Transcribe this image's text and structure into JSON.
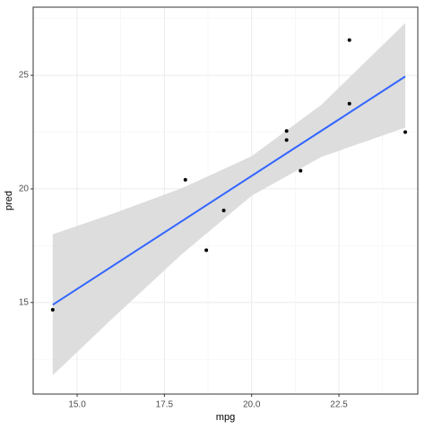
{
  "chart_data": {
    "type": "scatter",
    "x_label": "mpg",
    "y_label": "pred",
    "x": [
      14.3,
      18.1,
      18.7,
      19.2,
      21.0,
      21.0,
      21.4,
      22.8,
      22.8,
      24.4
    ],
    "values": [
      14.68,
      20.4,
      17.3,
      19.05,
      22.55,
      22.15,
      20.8,
      26.55,
      23.75,
      22.5
    ],
    "color": "#000000",
    "fit": {
      "x": [
        14.3,
        24.4
      ],
      "values": [
        14.9,
        24.95
      ],
      "color": "#3366ff"
    },
    "band": {
      "x": [
        14.3,
        16,
        18,
        20,
        22,
        24.4
      ],
      "lower": [
        11.8,
        14.28,
        17.13,
        19.7,
        21.41,
        22.7
      ],
      "upper": [
        18.0,
        18.9,
        20.03,
        21.44,
        23.71,
        27.3
      ],
      "color": "#d9d9d9"
    },
    "xlim": [
      13.74,
      24.76
    ],
    "ylim": [
      10.97,
      28.0
    ],
    "xticks": [
      {
        "value": 15,
        "label": "15.0"
      },
      17.5,
      {
        "value": 20,
        "label": "20.0"
      },
      22.5
    ],
    "yticks": [
      15,
      20,
      25
    ],
    "x_minor_ticks": [
      16.25,
      18.75,
      21.25,
      23.75
    ],
    "y_minor_ticks": [
      12.5,
      17.5,
      22.5,
      27.5
    ],
    "grid": true
  }
}
